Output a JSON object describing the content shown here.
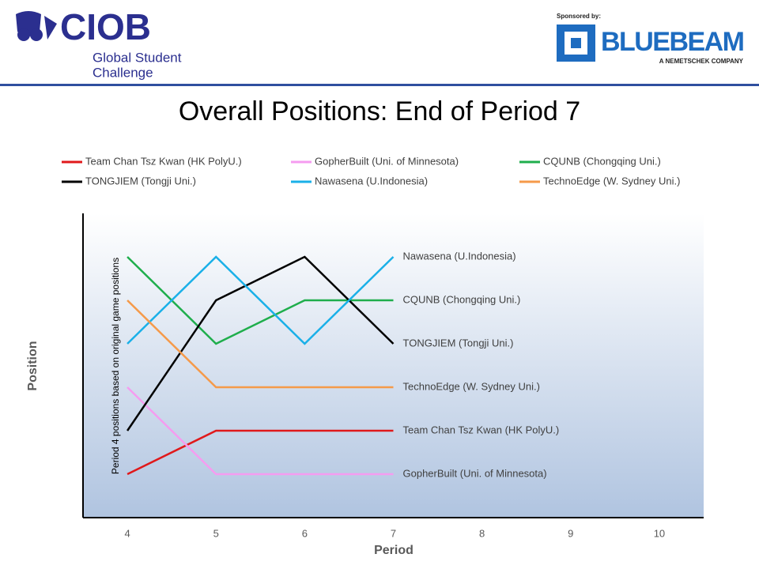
{
  "header": {
    "logo": "CIOB",
    "tagline": [
      "Global Student",
      "Challenge"
    ],
    "sponsor_label": "Sponsored by:",
    "sponsor": "BLUEBEAM",
    "sponsor_sub": "A NEMETSCHEK COMPANY"
  },
  "chart_data": {
    "type": "line",
    "title": "Overall Positions: End of Period 7",
    "x_label": "Period",
    "y_label": "Position",
    "annotation": "Period 4 positions based on original game positions",
    "x": [
      4,
      5,
      6,
      7
    ],
    "xlim": [
      3.5,
      10.5
    ],
    "xticks": [
      4,
      5,
      6,
      7,
      8,
      9,
      10
    ],
    "ylim": [
      7,
      0
    ],
    "series": [
      {
        "name": "Team Chan Tsz Kwan (HK PolyU.)",
        "color": "#e0191b",
        "values": [
          6,
          5,
          5,
          5
        ]
      },
      {
        "name": "GopherBuilt (Uni. of Minnesota)",
        "color": "#f59cf0",
        "values": [
          4,
          6,
          6,
          6
        ]
      },
      {
        "name": "CQUNB (Chongqing Uni.)",
        "color": "#1fae4c",
        "values": [
          1,
          3,
          2,
          2
        ]
      },
      {
        "name": "TONGJIEM (Tongji Uni.)",
        "color": "#000000",
        "values": [
          5,
          2,
          1,
          3
        ]
      },
      {
        "name": "Nawasena (U.Indonesia)",
        "color": "#1ab0e8",
        "values": [
          3,
          1,
          3,
          1
        ]
      },
      {
        "name": "TechnoEdge (W. Sydney Uni.)",
        "color": "#f59a4a",
        "values": [
          2,
          4,
          4,
          4
        ]
      }
    ]
  }
}
